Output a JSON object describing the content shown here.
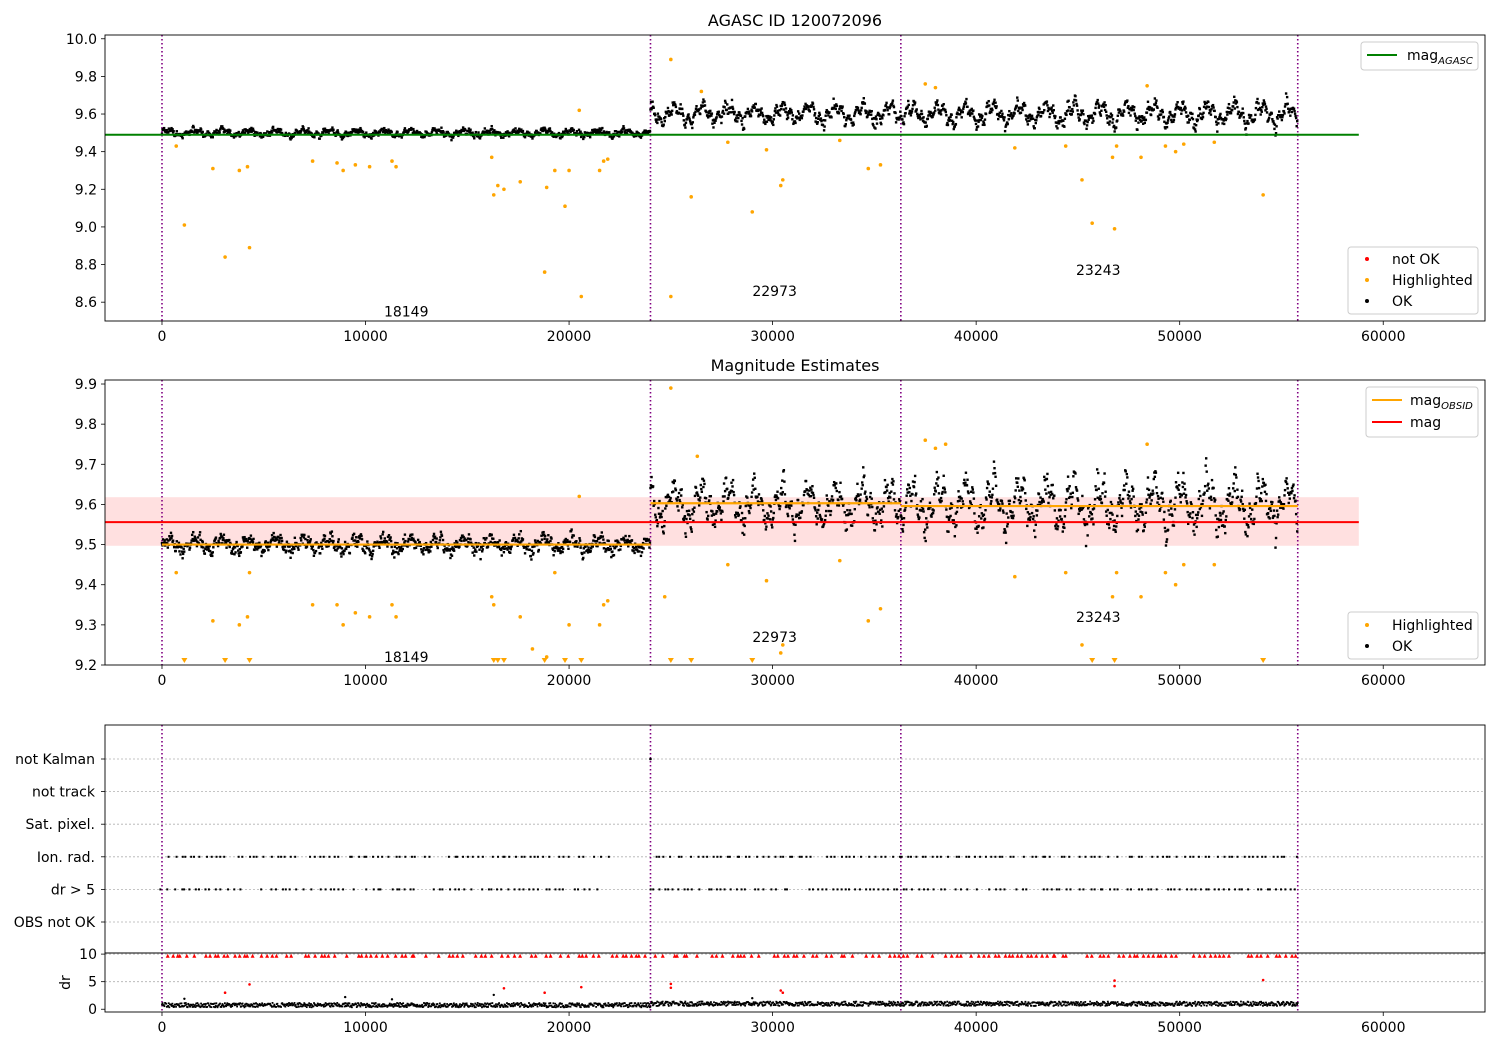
{
  "chart_data": [
    {
      "type": "scatter",
      "title": "AGASC ID 120072096",
      "xlim": [
        -2800,
        65000
      ],
      "ylim": [
        8.5,
        10.02
      ],
      "xticks": [
        0,
        10000,
        20000,
        30000,
        40000,
        50000,
        60000
      ],
      "yticks": [
        8.6,
        8.8,
        9.0,
        9.2,
        9.4,
        9.6,
        9.8,
        10.0
      ],
      "ytick_decimals": 1,
      "obsid_boundaries": [
        0,
        24000,
        36300,
        55800
      ],
      "obsid_labels": [
        {
          "text": "18149",
          "x": 12000,
          "y": 8.55
        },
        {
          "text": "22973",
          "x": 30100,
          "y": 8.66
        },
        {
          "text": "23243",
          "x": 46000,
          "y": 8.77
        }
      ],
      "hlines": [
        {
          "name": "mag_AGASC",
          "y": 9.49,
          "x0": -2800,
          "x1": 58800,
          "color": "#008000"
        }
      ],
      "segments": [
        {
          "x0": 0,
          "x1": 24000,
          "center": 9.5,
          "amp": 0.04,
          "noise": 0.012
        },
        {
          "x0": 24000,
          "x1": 36300,
          "center": 9.6,
          "amp": 0.11,
          "noise": 0.02
        },
        {
          "x0": 36300,
          "x1": 55800,
          "center": 9.6,
          "amp": 0.13,
          "noise": 0.02
        }
      ],
      "highlighted_points": [
        [
          1100,
          9.01
        ],
        [
          2500,
          9.31
        ],
        [
          3100,
          8.84
        ],
        [
          3800,
          9.3
        ],
        [
          4300,
          8.89
        ],
        [
          4200,
          9.32
        ],
        [
          700,
          9.43
        ],
        [
          7400,
          9.35
        ],
        [
          8600,
          9.34
        ],
        [
          8900,
          9.3
        ],
        [
          9500,
          9.33
        ],
        [
          10200,
          9.32
        ],
        [
          11300,
          9.35
        ],
        [
          11500,
          9.32
        ],
        [
          16200,
          9.37
        ],
        [
          16300,
          9.17
        ],
        [
          16500,
          9.22
        ],
        [
          16800,
          9.2
        ],
        [
          17600,
          9.24
        ],
        [
          18800,
          8.76
        ],
        [
          18900,
          9.21
        ],
        [
          19300,
          9.3
        ],
        [
          19800,
          9.11
        ],
        [
          20000,
          9.3
        ],
        [
          20500,
          9.62
        ],
        [
          20600,
          8.63
        ],
        [
          21500,
          9.3
        ],
        [
          21700,
          9.35
        ],
        [
          21900,
          9.36
        ],
        [
          25000,
          9.89
        ],
        [
          25000,
          8.63
        ],
        [
          26000,
          9.16
        ],
        [
          27800,
          9.45
        ],
        [
          29000,
          9.08
        ],
        [
          29700,
          9.41
        ],
        [
          30400,
          9.22
        ],
        [
          30500,
          9.25
        ],
        [
          33300,
          9.46
        ],
        [
          34700,
          9.31
        ],
        [
          35300,
          9.33
        ],
        [
          41900,
          9.42
        ],
        [
          44400,
          9.43
        ],
        [
          45200,
          9.25
        ],
        [
          45700,
          9.02
        ],
        [
          46700,
          9.37
        ],
        [
          46800,
          8.99
        ],
        [
          46900,
          9.43
        ],
        [
          48100,
          9.37
        ],
        [
          49300,
          9.43
        ],
        [
          49800,
          9.4
        ],
        [
          50200,
          9.44
        ],
        [
          51700,
          9.45
        ],
        [
          54100,
          9.17
        ],
        [
          26500,
          9.72
        ],
        [
          37500,
          9.76
        ],
        [
          38000,
          9.74
        ],
        [
          48400,
          9.75
        ]
      ],
      "legend_lines": [
        {
          "label": "mag",
          "sub": "AGASC",
          "color": "#008000"
        }
      ],
      "legend_points": [
        {
          "label": "not OK",
          "color": "#ff0000"
        },
        {
          "label": "Highlighted",
          "color": "#ffa500"
        },
        {
          "label": "OK",
          "color": "#000000"
        }
      ]
    },
    {
      "type": "scatter",
      "title": "Magnitude Estimates",
      "xlim": [
        -2800,
        65000
      ],
      "ylim": [
        9.2,
        9.91
      ],
      "xticks": [
        0,
        10000,
        20000,
        30000,
        40000,
        50000,
        60000
      ],
      "yticks": [
        9.2,
        9.3,
        9.4,
        9.5,
        9.6,
        9.7,
        9.8,
        9.9
      ],
      "ytick_decimals": 1,
      "obsid_boundaries": [
        0,
        24000,
        36300,
        55800
      ],
      "obsid_labels": [
        {
          "text": "18149",
          "x": 12000,
          "y": 9.22
        },
        {
          "text": "22973",
          "x": 30100,
          "y": 9.27
        },
        {
          "text": "23243",
          "x": 46000,
          "y": 9.32
        }
      ],
      "hlines": [
        {
          "name": "mag",
          "y": 9.556,
          "x0": -2800,
          "x1": 58800,
          "color": "#ff0000"
        }
      ],
      "band": {
        "y0": 9.497,
        "y1": 9.618,
        "x0": -2800,
        "x1": 58800,
        "color": "#ff0000",
        "opacity": 0.12
      },
      "obsid_mags": [
        {
          "x0": 0,
          "x1": 24000,
          "y": 9.5
        },
        {
          "x0": 24000,
          "x1": 36300,
          "y": 9.603
        },
        {
          "x0": 36300,
          "x1": 55800,
          "y": 9.596
        }
      ],
      "segments": [
        {
          "x0": 0,
          "x1": 24000,
          "center": 9.5,
          "amp": 0.04,
          "noise": 0.012
        },
        {
          "x0": 24000,
          "x1": 36300,
          "center": 9.6,
          "amp": 0.11,
          "noise": 0.02
        },
        {
          "x0": 36300,
          "x1": 55800,
          "center": 9.6,
          "amp": 0.13,
          "noise": 0.02
        }
      ],
      "highlighted_points": [
        [
          700,
          9.43
        ],
        [
          2500,
          9.31
        ],
        [
          3800,
          9.3
        ],
        [
          4200,
          9.32
        ],
        [
          4300,
          9.43
        ],
        [
          7400,
          9.35
        ],
        [
          8600,
          9.35
        ],
        [
          8900,
          9.3
        ],
        [
          9500,
          9.33
        ],
        [
          10200,
          9.32
        ],
        [
          11300,
          9.35
        ],
        [
          11500,
          9.32
        ],
        [
          16200,
          9.37
        ],
        [
          16300,
          9.35
        ],
        [
          17600,
          9.32
        ],
        [
          18200,
          9.24
        ],
        [
          18900,
          9.22
        ],
        [
          19300,
          9.43
        ],
        [
          20000,
          9.3
        ],
        [
          20500,
          9.62
        ],
        [
          21500,
          9.3
        ],
        [
          21700,
          9.35
        ],
        [
          21900,
          9.36
        ],
        [
          25000,
          9.89
        ],
        [
          24700,
          9.37
        ],
        [
          26300,
          9.72
        ],
        [
          27800,
          9.45
        ],
        [
          29700,
          9.41
        ],
        [
          30400,
          9.23
        ],
        [
          30500,
          9.25
        ],
        [
          33300,
          9.46
        ],
        [
          34700,
          9.31
        ],
        [
          35300,
          9.34
        ],
        [
          37500,
          9.76
        ],
        [
          38000,
          9.74
        ],
        [
          38500,
          9.75
        ],
        [
          41900,
          9.42
        ],
        [
          44400,
          9.43
        ],
        [
          45200,
          9.25
        ],
        [
          46700,
          9.37
        ],
        [
          46900,
          9.43
        ],
        [
          48100,
          9.37
        ],
        [
          48400,
          9.75
        ],
        [
          49300,
          9.43
        ],
        [
          49800,
          9.4
        ],
        [
          50200,
          9.45
        ],
        [
          51700,
          9.45
        ]
      ],
      "offscale_points": [
        1100,
        3100,
        4300,
        16300,
        16500,
        16800,
        18800,
        19800,
        20600,
        25000,
        26000,
        29000,
        45700,
        46800,
        54100
      ],
      "legend_lines": [
        {
          "label": "mag",
          "sub": "OBSID",
          "color": "#ffa500"
        },
        {
          "label": "mag",
          "sub": "",
          "color": "#ff0000"
        }
      ],
      "legend_points": [
        {
          "label": "Highlighted",
          "color": "#ffa500"
        },
        {
          "label": "OK",
          "color": "#000000"
        }
      ]
    },
    {
      "type": "scatter",
      "title": "",
      "xlim": [
        -2800,
        65000
      ],
      "categories": [
        "not Kalman",
        "not track",
        "Sat. pixel.",
        "Ion. rad.",
        "dr > 5",
        "OBS not OK"
      ],
      "obsid_boundaries": [
        0,
        24000,
        36300,
        55800
      ],
      "flag_rows": [
        "Ion. rad.",
        "dr > 5"
      ],
      "flag_gaps": [
        [
          20800,
          21500
        ],
        [
          21800,
          23300
        ],
        [
          23400,
          24000
        ]
      ]
    },
    {
      "type": "scatter",
      "title": "",
      "ylabel": "dr",
      "xlim": [
        -2800,
        65000
      ],
      "ylim": [
        -0.5,
        10.2
      ],
      "xticks": [
        0,
        10000,
        20000,
        30000,
        40000,
        50000,
        60000
      ],
      "yticks": [
        0,
        5,
        10
      ],
      "ytick_decimals": 0,
      "obsid_boundaries": [
        0,
        24000,
        36300,
        55800
      ],
      "clip_value": 9.7,
      "dr_outliers": [
        [
          3100,
          3.0
        ],
        [
          4300,
          4.5
        ],
        [
          16800,
          3.8
        ],
        [
          18800,
          3.0
        ],
        [
          20600,
          4.0
        ],
        [
          25000,
          4.6
        ],
        [
          25000,
          3.9
        ],
        [
          30400,
          3.4
        ],
        [
          30500,
          3.0
        ],
        [
          46800,
          5.2
        ],
        [
          46800,
          4.2
        ],
        [
          54100,
          5.3
        ]
      ],
      "dr_black_spikes": [
        [
          1100,
          1.9
        ],
        [
          9000,
          2.2
        ],
        [
          11300,
          1.8
        ],
        [
          16300,
          2.6
        ],
        [
          29000,
          2.0
        ]
      ]
    }
  ]
}
